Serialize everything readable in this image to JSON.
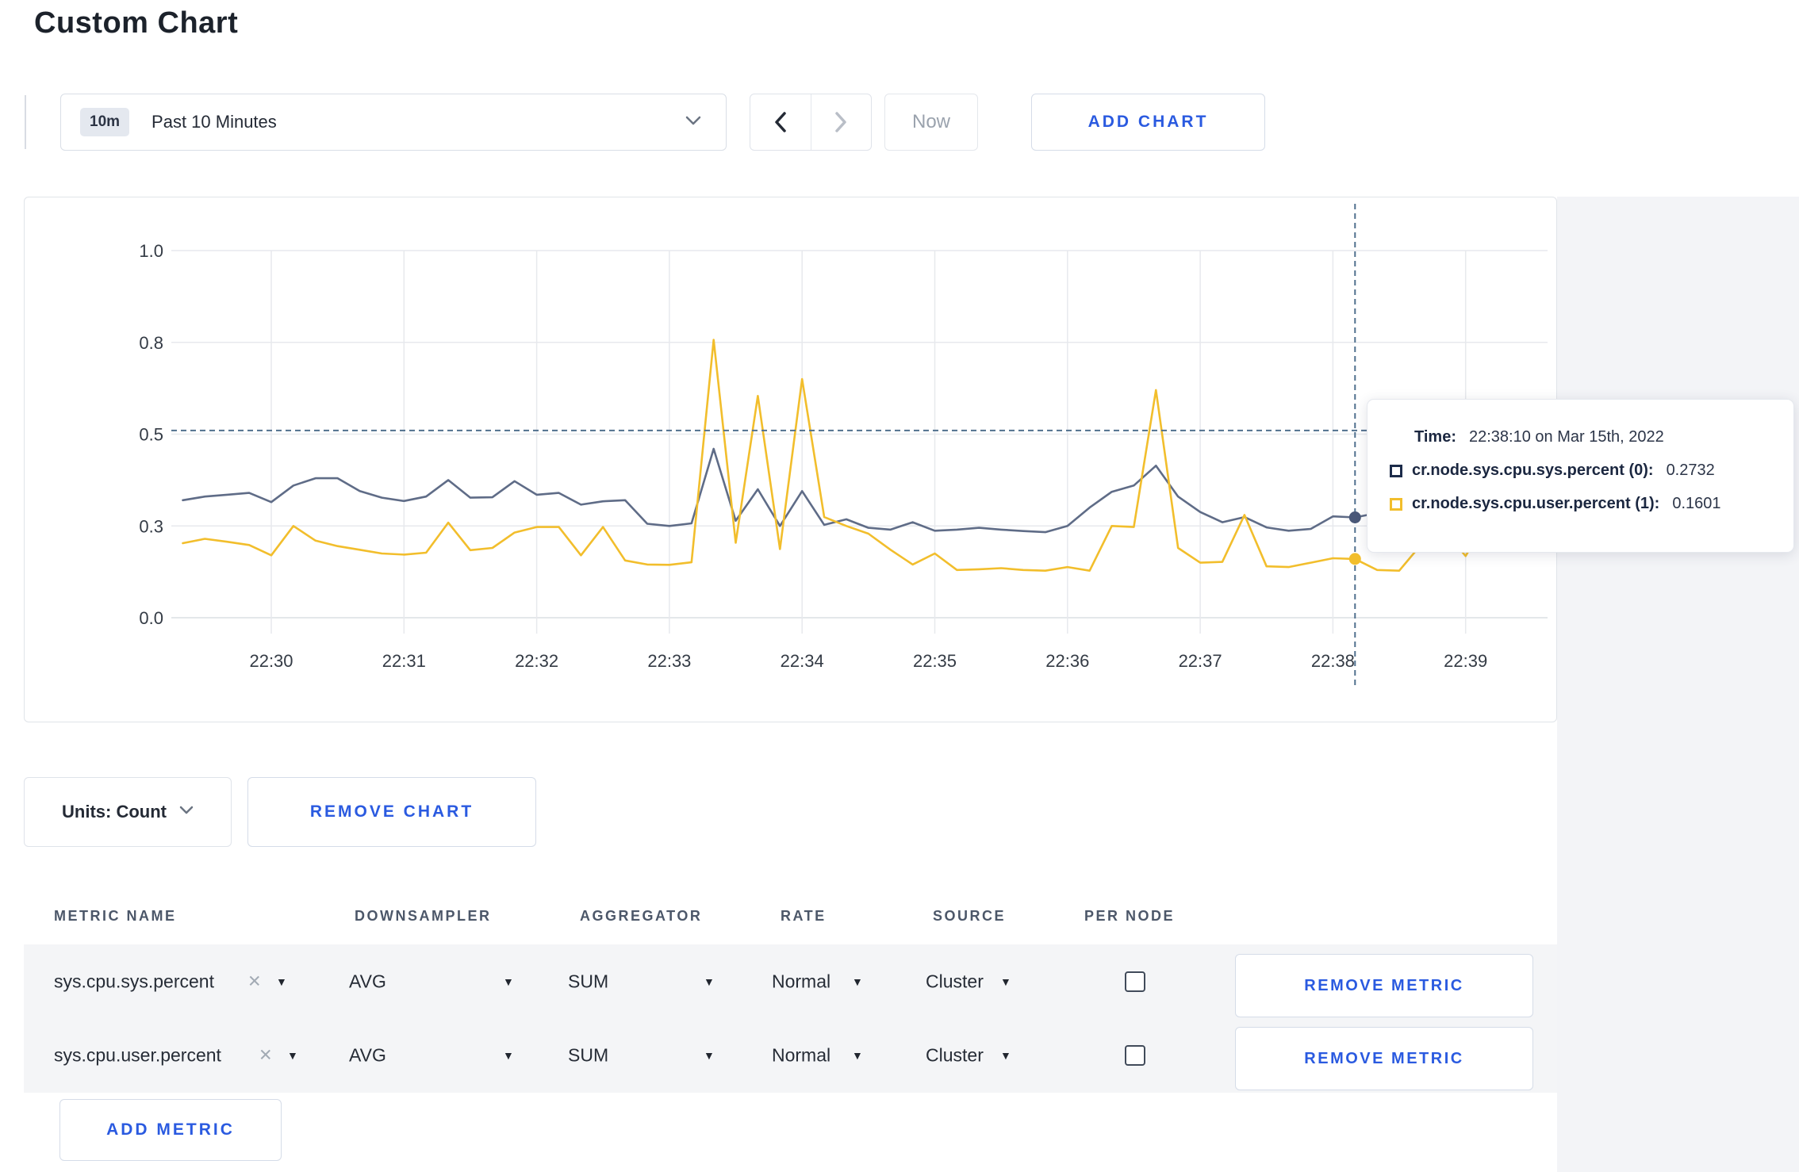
{
  "page": {
    "title": "Custom Chart"
  },
  "toolbar": {
    "time_window_badge": "10m",
    "time_window_label": "Past 10 Minutes",
    "now_label": "Now",
    "add_chart_label": "ADD CHART"
  },
  "chart_data": {
    "type": "line",
    "x_ticks": [
      "22:30",
      "22:31",
      "22:32",
      "22:33",
      "22:34",
      "22:35",
      "22:36",
      "22:37",
      "22:38",
      "22:39"
    ],
    "y_tick_labels": [
      "0.0",
      "0.3",
      "0.5",
      "0.8",
      "1.0"
    ],
    "y_tick_values": [
      0,
      0.25,
      0.5,
      0.75,
      1.0
    ],
    "ylim": [
      0,
      1
    ],
    "start_offset_minutes": -0.6667,
    "interval_seconds": 10,
    "grid": true,
    "legend_position": "tooltip",
    "series": [
      {
        "name": "cr.node.sys.cpu.sys.percent",
        "color": "#5f6c87",
        "values": [
          0.32,
          0.33,
          0.335,
          0.34,
          0.315,
          0.36,
          0.38,
          0.38,
          0.345,
          0.327,
          0.318,
          0.33,
          0.375,
          0.327,
          0.328,
          0.372,
          0.335,
          0.34,
          0.308,
          0.317,
          0.32,
          0.256,
          0.25,
          0.257,
          0.46,
          0.264,
          0.35,
          0.25,
          0.345,
          0.253,
          0.268,
          0.245,
          0.24,
          0.26,
          0.237,
          0.24,
          0.245,
          0.24,
          0.236,
          0.233,
          0.25,
          0.3,
          0.343,
          0.36,
          0.414,
          0.33,
          0.288,
          0.26,
          0.274,
          0.246,
          0.237,
          0.242,
          0.276,
          0.2732,
          0.285,
          0.3,
          0.295,
          0.31,
          0.3,
          0.29
        ]
      },
      {
        "name": "cr.node.sys.cpu.user.percent",
        "color": "#f2be2c",
        "values": [
          0.203,
          0.215,
          0.207,
          0.198,
          0.17,
          0.25,
          0.21,
          0.195,
          0.185,
          0.175,
          0.172,
          0.177,
          0.259,
          0.184,
          0.19,
          0.232,
          0.247,
          0.247,
          0.17,
          0.247,
          0.156,
          0.145,
          0.144,
          0.151,
          0.757,
          0.204,
          0.604,
          0.187,
          0.65,
          0.274,
          0.25,
          0.229,
          0.185,
          0.145,
          0.175,
          0.13,
          0.132,
          0.135,
          0.13,
          0.128,
          0.138,
          0.128,
          0.25,
          0.247,
          0.62,
          0.19,
          0.15,
          0.152,
          0.28,
          0.14,
          0.138,
          0.15,
          0.162,
          0.1601,
          0.13,
          0.128,
          0.2,
          0.24,
          0.168,
          0.27
        ]
      }
    ],
    "crosshair": {
      "x_minutes_after_2230": 8.1667,
      "value_line": 0.51,
      "dot_values": [
        0.2732,
        0.1601
      ],
      "dot_colors": [
        "#4a5878",
        "#f2be2c"
      ]
    }
  },
  "tooltip": {
    "time_label": "Time:",
    "time_value": "22:38:10 on Mar 15th, 2022",
    "rows": [
      {
        "label": "cr.node.sys.cpu.sys.percent (0):",
        "value": "0.2732",
        "color": "#1c2b4a"
      },
      {
        "label": "cr.node.sys.cpu.user.percent (1):",
        "value": "0.1601",
        "color": "#f2be2c"
      }
    ]
  },
  "chart_controls": {
    "units_label": "Units: Count",
    "remove_chart_label": "REMOVE CHART"
  },
  "metrics_table": {
    "headers": [
      "METRIC NAME",
      "DOWNSAMPLER",
      "AGGREGATOR",
      "RATE",
      "SOURCE",
      "PER NODE"
    ],
    "rows": [
      {
        "metric_name": "sys.cpu.sys.percent",
        "downsampler": "AVG",
        "aggregator": "SUM",
        "rate": "Normal",
        "source": "Cluster",
        "per_node_checked": false,
        "remove_label": "REMOVE METRIC"
      },
      {
        "metric_name": "sys.cpu.user.percent",
        "downsampler": "AVG",
        "aggregator": "SUM",
        "rate": "Normal",
        "source": "Cluster",
        "per_node_checked": false,
        "remove_label": "REMOVE METRIC"
      }
    ],
    "add_metric_label": "ADD METRIC"
  },
  "colors": {
    "accent_blue": "#2a5ae0",
    "series_sys": "#5f6c87",
    "series_user": "#f2be2c",
    "grid": "#e7e9ed"
  }
}
